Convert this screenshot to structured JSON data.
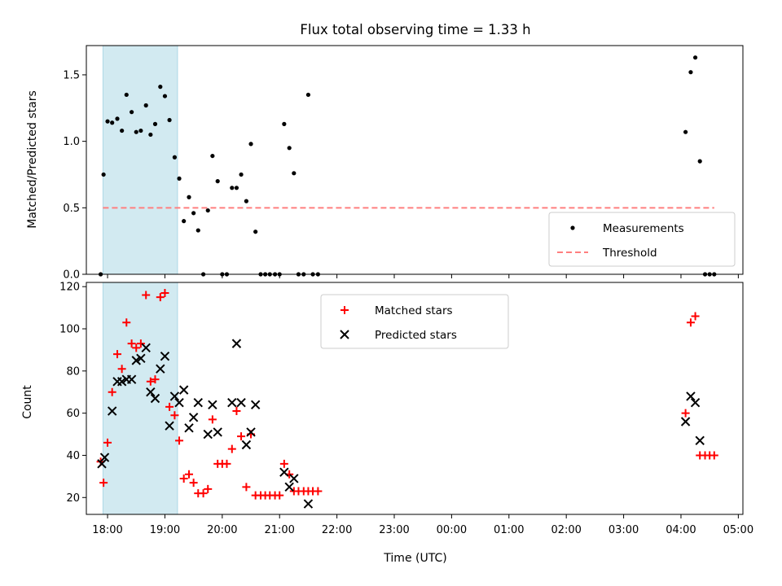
{
  "colors": {
    "measurement": "#000000",
    "threshold": "#ff7f7f",
    "matched": "#ff0000",
    "predicted": "#000000",
    "shade": "#add8e6",
    "axis": "#000000"
  },
  "chart_data": [
    {
      "type": "scatter",
      "title": "Flux total observing time = 1.33 h",
      "xlabel": "",
      "ylabel": "Matched/Predicted stars",
      "ylim": [
        0,
        1.72
      ],
      "yticks": [
        0.0,
        0.5,
        1.0,
        1.5
      ],
      "ytick_labels": [
        "0.0",
        "0.5",
        "1.0",
        "1.5"
      ],
      "xlim_hours": [
        17.63,
        29.08
      ],
      "xticks_hours": [
        18,
        19,
        20,
        21,
        22,
        23,
        24,
        25,
        26,
        27,
        28,
        29
      ],
      "shaded_span_hours": [
        17.92,
        19.22
      ],
      "legend_position": "lower-right",
      "series": [
        {
          "name": "Measurements",
          "marker": "dot",
          "x": [
            17.88,
            17.93,
            18.0,
            18.08,
            18.17,
            18.25,
            18.33,
            18.42,
            18.5,
            18.58,
            18.67,
            18.75,
            18.83,
            18.92,
            19.0,
            19.08,
            19.17,
            19.25,
            19.33,
            19.42,
            19.5,
            19.58,
            19.67,
            19.75,
            19.83,
            19.92,
            20.0,
            20.08,
            20.17,
            20.25,
            20.33,
            20.42,
            20.5,
            20.58,
            20.67,
            20.75,
            20.83,
            20.92,
            21.0,
            21.08,
            21.17,
            21.25,
            21.33,
            21.42,
            21.5,
            21.58,
            21.67,
            28.08,
            28.17,
            28.25,
            28.33,
            28.42,
            28.5,
            28.58
          ],
          "y": [
            0.0,
            0.75,
            1.15,
            1.14,
            1.17,
            1.08,
            1.35,
            1.22,
            1.07,
            1.08,
            1.27,
            1.05,
            1.13,
            1.41,
            1.34,
            1.16,
            0.88,
            0.72,
            0.4,
            0.58,
            0.46,
            0.33,
            0.0,
            0.48,
            0.89,
            0.7,
            0.0,
            0.0,
            0.65,
            0.65,
            0.75,
            0.55,
            0.98,
            0.32,
            0.0,
            0.0,
            0.0,
            0.0,
            0.0,
            1.13,
            0.95,
            0.76,
            0.0,
            0.0,
            1.35,
            0.0,
            0.0,
            1.07,
            1.52,
            1.63,
            0.85,
            0.0,
            0.0,
            0.0
          ]
        },
        {
          "name": "Threshold",
          "style": "dashed",
          "x": [
            17.92,
            28.58
          ],
          "y": [
            0.5,
            0.5
          ]
        }
      ]
    },
    {
      "type": "scatter",
      "title": "",
      "xlabel": "Time (UTC)",
      "ylabel": "Count",
      "ylim": [
        12,
        122
      ],
      "yticks": [
        20,
        40,
        60,
        80,
        100,
        120
      ],
      "ytick_labels": [
        "20",
        "40",
        "60",
        "80",
        "100",
        "120"
      ],
      "xlim_hours": [
        17.63,
        29.08
      ],
      "xticks_hours": [
        18,
        19,
        20,
        21,
        22,
        23,
        24,
        25,
        26,
        27,
        28,
        29
      ],
      "xtick_labels": [
        "18:00",
        "19:00",
        "20:00",
        "21:00",
        "22:00",
        "23:00",
        "00:00",
        "01:00",
        "02:00",
        "03:00",
        "04:00",
        "05:00"
      ],
      "shaded_span_hours": [
        17.92,
        19.22
      ],
      "legend_position": "upper-center",
      "series": [
        {
          "name": "Matched stars",
          "marker": "plus",
          "x": [
            17.88,
            17.93,
            18.0,
            18.08,
            18.17,
            18.25,
            18.33,
            18.42,
            18.5,
            18.58,
            18.67,
            18.75,
            18.83,
            18.92,
            19.0,
            19.08,
            19.17,
            19.25,
            19.33,
            19.42,
            19.5,
            19.58,
            19.67,
            19.75,
            19.83,
            19.92,
            20.0,
            20.08,
            20.17,
            20.25,
            20.33,
            20.42,
            20.5,
            20.58,
            20.67,
            20.75,
            20.83,
            20.92,
            21.0,
            21.08,
            21.17,
            21.25,
            21.33,
            21.42,
            21.5,
            21.58,
            21.67,
            28.08,
            28.17,
            28.25,
            28.33,
            28.42,
            28.5,
            28.58
          ],
          "y": [
            37,
            27,
            46,
            70,
            88,
            81,
            103,
            93,
            91,
            93,
            116,
            75,
            76,
            115,
            117,
            63,
            59,
            47,
            29,
            31,
            27,
            22,
            22,
            24,
            57,
            36,
            36,
            36,
            43,
            61,
            49,
            25,
            50,
            21,
            21,
            21,
            21,
            21,
            21,
            36,
            31,
            23,
            23,
            23,
            23,
            23,
            23,
            60,
            103,
            106,
            40,
            40,
            40,
            40
          ]
        },
        {
          "name": "Predicted stars",
          "marker": "x",
          "x": [
            17.9,
            17.95,
            18.08,
            18.17,
            18.25,
            18.33,
            18.42,
            18.5,
            18.58,
            18.67,
            18.75,
            18.83,
            18.92,
            19.0,
            19.08,
            19.17,
            19.25,
            19.33,
            19.42,
            19.5,
            19.58,
            19.75,
            19.83,
            19.92,
            20.17,
            20.25,
            20.33,
            20.42,
            20.5,
            20.58,
            21.08,
            21.17,
            21.25,
            21.5,
            28.08,
            28.17,
            28.25,
            28.33
          ],
          "y": [
            36,
            39,
            61,
            75,
            75,
            76,
            76,
            85,
            86,
            91,
            70,
            67,
            81,
            87,
            54,
            68,
            65,
            71,
            53,
            58,
            65,
            50,
            64,
            51,
            65,
            93,
            65,
            45,
            51,
            64,
            32,
            25,
            29,
            17,
            56,
            68,
            65,
            47
          ]
        }
      ]
    }
  ]
}
